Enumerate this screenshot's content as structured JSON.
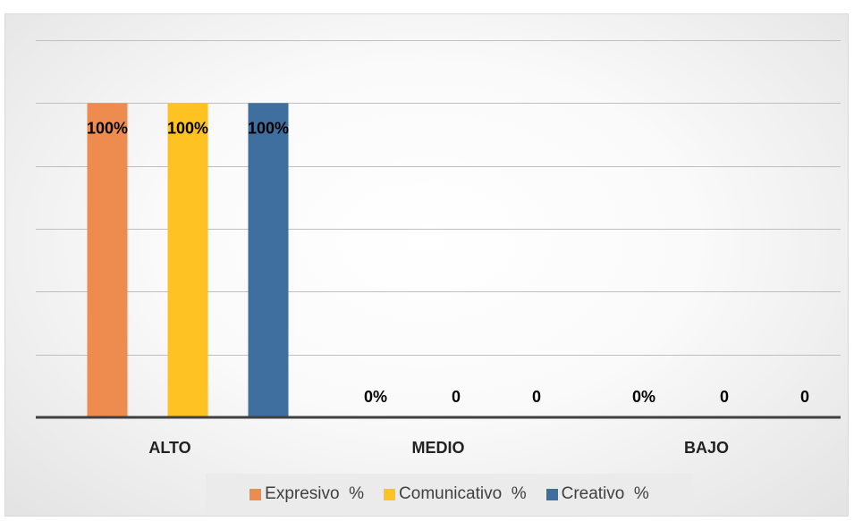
{
  "chart_data": {
    "type": "bar",
    "categories": [
      "ALTO",
      "MEDIO",
      "BAJO"
    ],
    "series": [
      {
        "name": "Expresivo  %",
        "color": "#ED8C4E",
        "values": [
          1.0,
          0.0,
          0.0
        ],
        "labels": [
          "100%",
          "0%",
          "0%"
        ]
      },
      {
        "name": "Comunicativo  %",
        "color": "#FFC222",
        "values": [
          1.0,
          0.0,
          0.0
        ],
        "labels": [
          "100%",
          "0",
          "0"
        ]
      },
      {
        "name": "Creativo  %",
        "color": "#3F6F9E",
        "values": [
          1.0,
          0.0,
          0.0
        ],
        "labels": [
          "100%",
          "0",
          "0"
        ]
      }
    ],
    "ylim": [
      0,
      1.2
    ],
    "grid": true,
    "legend_position": "bottom"
  }
}
